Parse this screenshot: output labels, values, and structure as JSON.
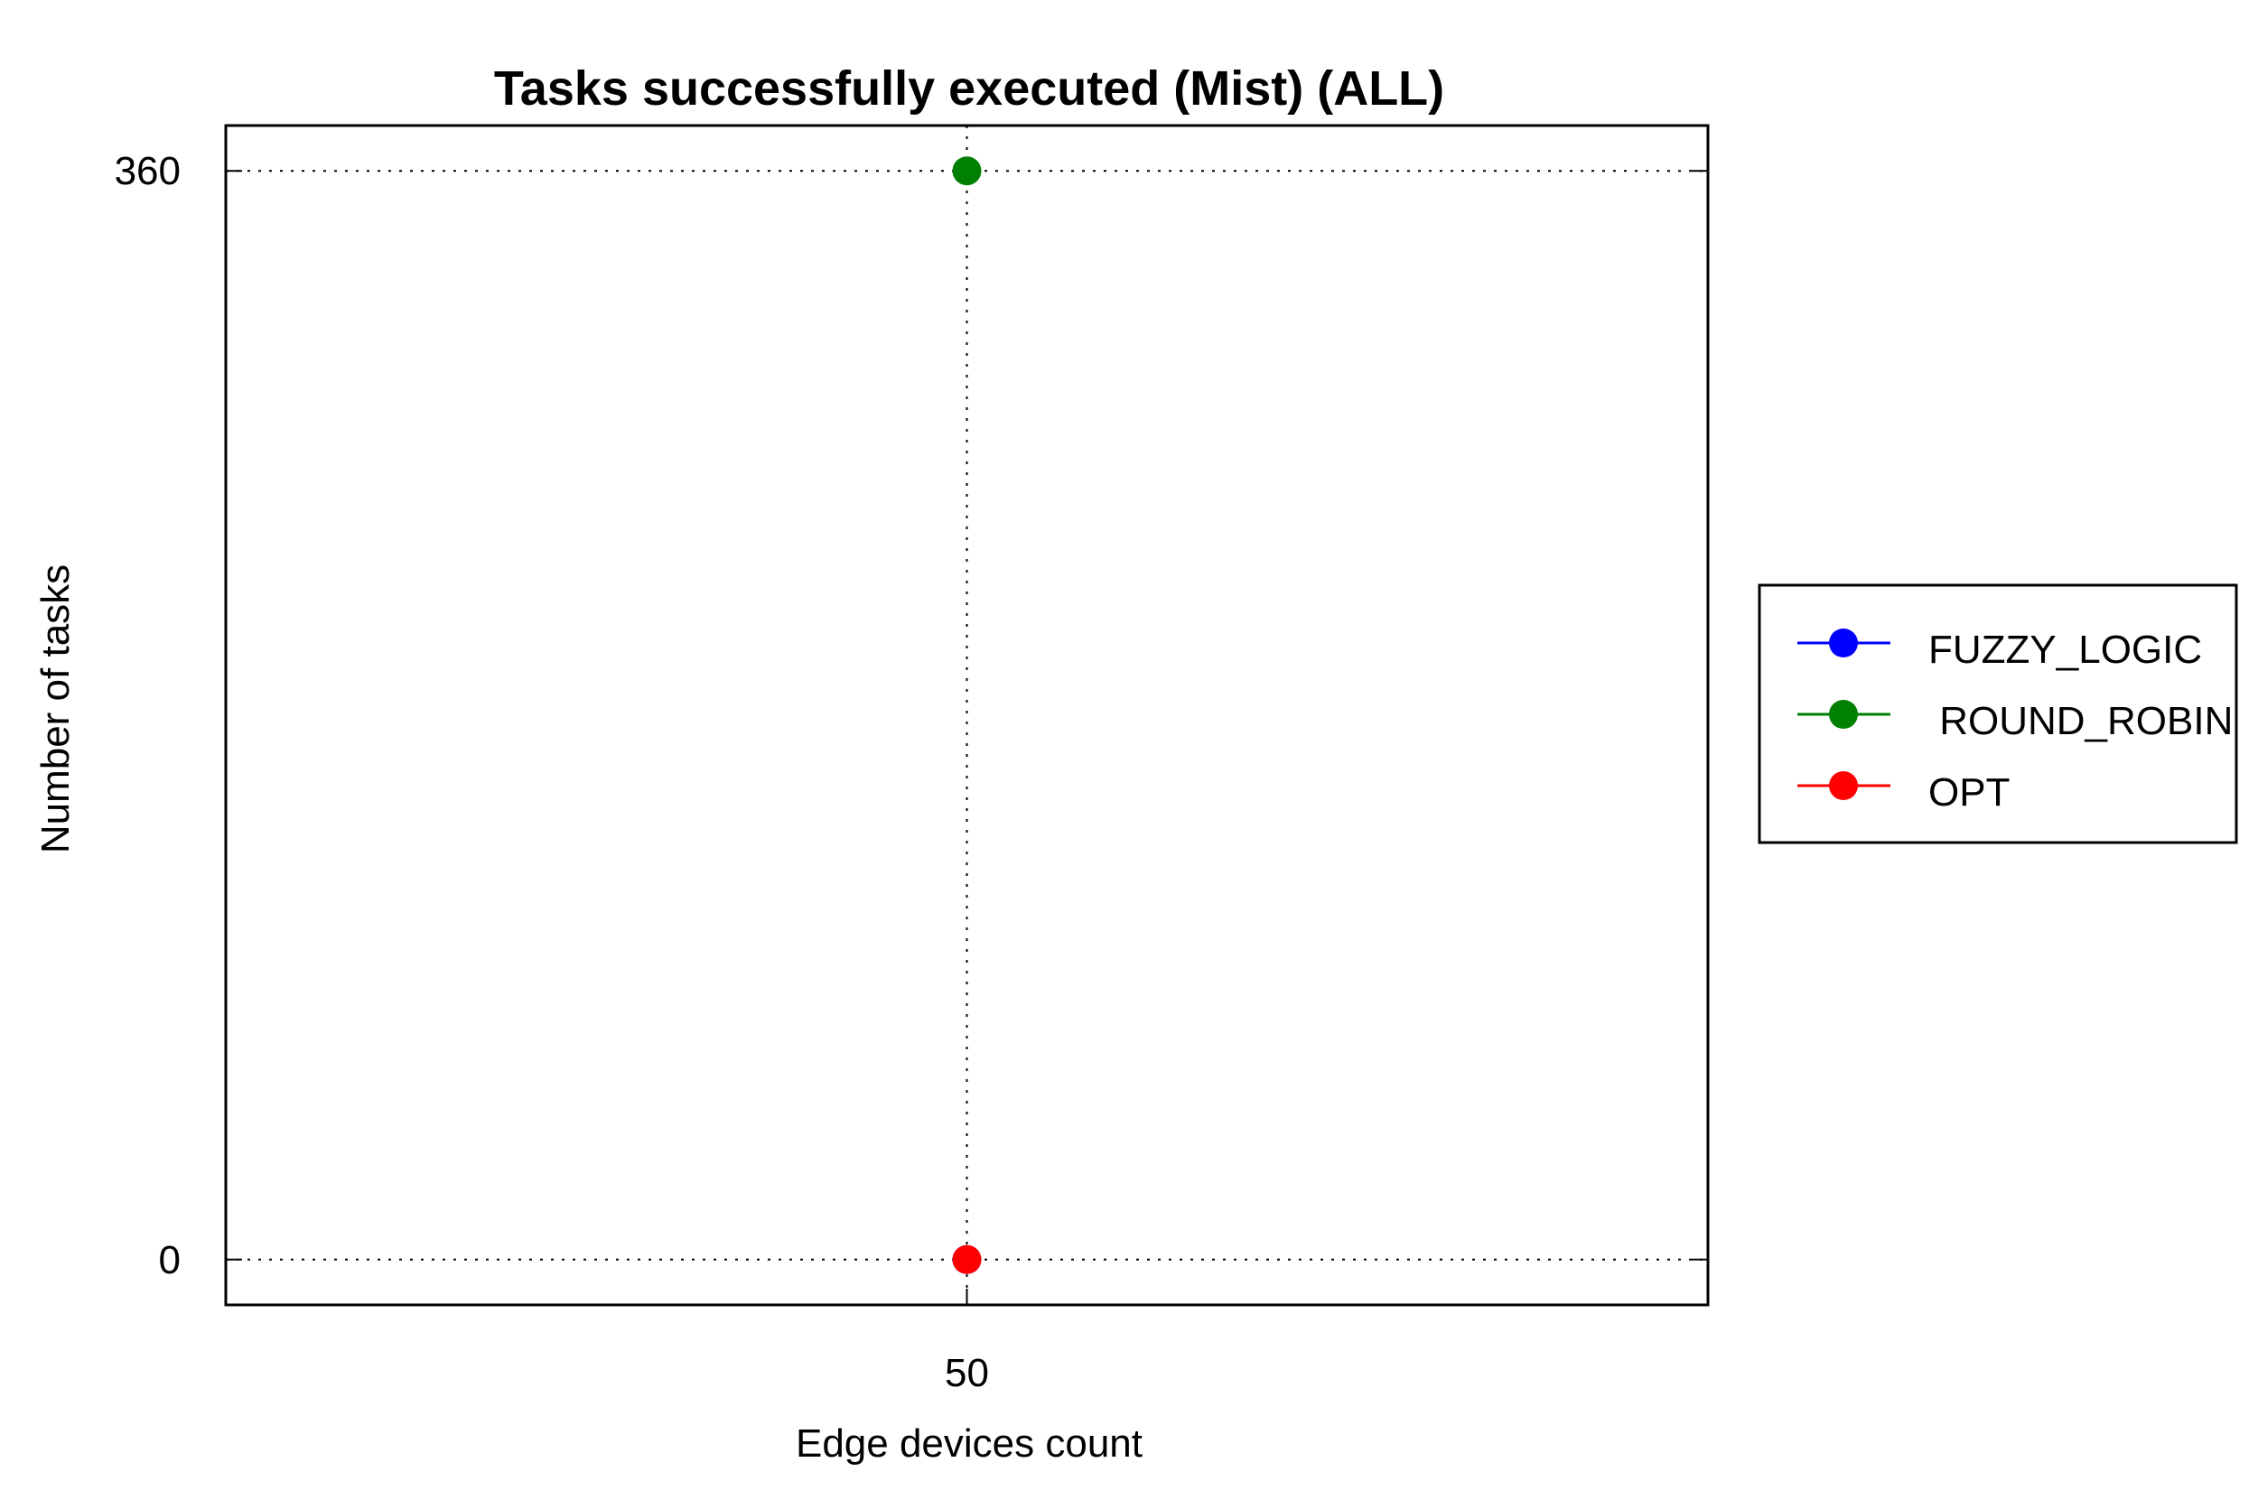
{
  "chart_data": {
    "type": "line",
    "title": "Tasks successfully executed (Mist) (ALL)",
    "xlabel": "Edge devices count",
    "ylabel": "Number of tasks",
    "x": [
      50
    ],
    "x_tick_labels": [
      "50"
    ],
    "y_ticks": [
      0,
      360
    ],
    "y_tick_labels": [
      "0",
      "360"
    ],
    "ylim": [
      -15,
      375
    ],
    "grid": true,
    "legend_position": "right",
    "series": [
      {
        "name": "FUZZY_LOGIC",
        "color": "#0000ff",
        "values": [
          0
        ]
      },
      {
        "name": " ROUND_ROBIN",
        "color": "#008000",
        "values": [
          360
        ]
      },
      {
        "name": "OPT",
        "color": "#ff0000",
        "values": [
          0
        ]
      }
    ]
  }
}
